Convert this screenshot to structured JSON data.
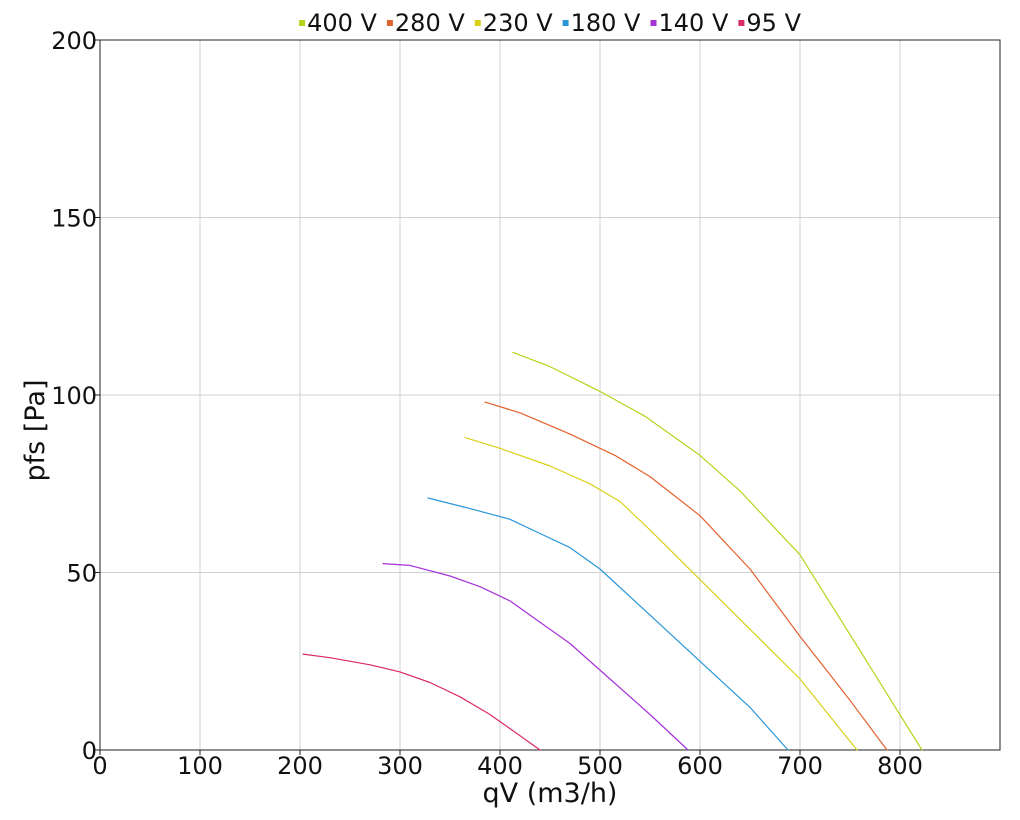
{
  "chart_data": {
    "type": "line",
    "xlabel": "qV (m3/h)",
    "ylabel": "pfs [Pa]",
    "xlim": [
      0,
      900
    ],
    "ylim": [
      0,
      200
    ],
    "x_ticks": [
      0,
      100,
      200,
      300,
      400,
      500,
      600,
      700,
      800
    ],
    "y_ticks": [
      0,
      50,
      100,
      150,
      200
    ],
    "grid": true,
    "legend_position": "top",
    "series": [
      {
        "name": "400 V",
        "color": "#b5d41a",
        "x": [
          413,
          450,
          500,
          545,
          600,
          640,
          700,
          760,
          822
        ],
        "y": [
          112,
          108,
          101,
          94,
          83,
          73,
          55,
          28,
          0
        ]
      },
      {
        "name": "280 V",
        "color": "#e2622e",
        "x": [
          385,
          420,
          470,
          515,
          550,
          600,
          650,
          700,
          750,
          787
        ],
        "y": [
          98,
          95,
          89,
          83,
          77,
          66,
          51,
          32,
          14,
          0
        ]
      },
      {
        "name": "230 V",
        "color": "#dad01a",
        "x": [
          365,
          400,
          450,
          490,
          520,
          550,
          600,
          650,
          700,
          757
        ],
        "y": [
          88,
          85,
          80,
          75,
          70,
          62,
          48,
          34,
          20,
          0
        ]
      },
      {
        "name": "180 V",
        "color": "#2a96d8",
        "x": [
          328,
          370,
          410,
          440,
          470,
          500,
          550,
          600,
          650,
          688
        ],
        "y": [
          71,
          68,
          65,
          61,
          57,
          51,
          38,
          25,
          12,
          0
        ]
      },
      {
        "name": "140 V",
        "color": "#a633d8",
        "x": [
          283,
          310,
          350,
          380,
          410,
          440,
          470,
          510,
          550,
          588
        ],
        "y": [
          52.5,
          52,
          49,
          46,
          42,
          36,
          30,
          20,
          10,
          0
        ]
      },
      {
        "name": "95 V",
        "color": "#d92a6a",
        "x": [
          203,
          230,
          270,
          300,
          330,
          360,
          390,
          420,
          440
        ],
        "y": [
          27,
          26,
          24,
          22,
          19,
          15,
          10,
          4,
          0
        ]
      }
    ]
  }
}
